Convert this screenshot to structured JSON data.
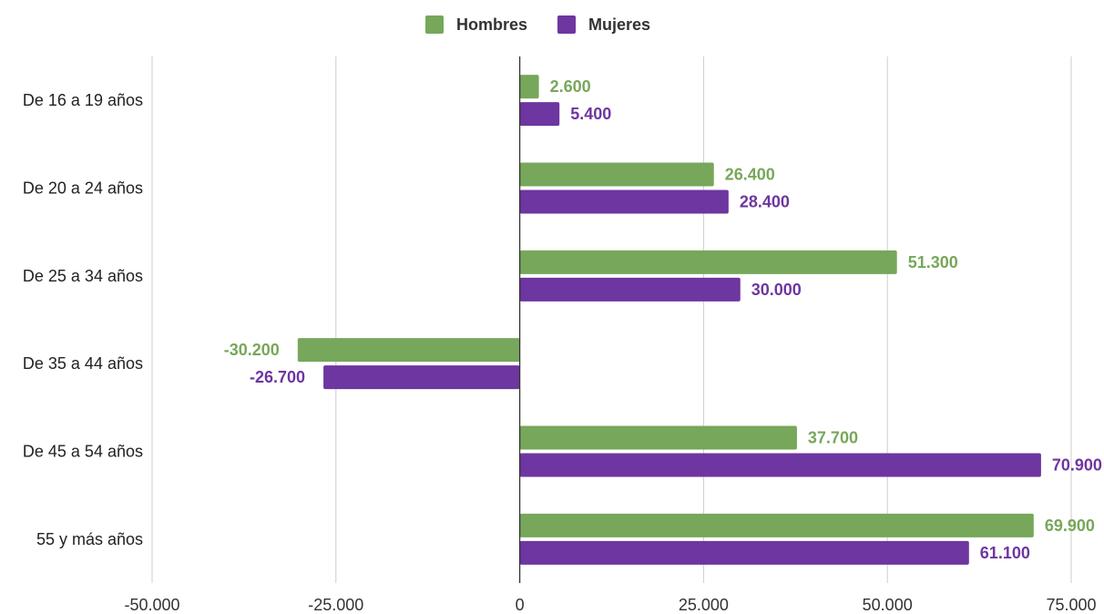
{
  "chart_data": {
    "type": "bar",
    "orientation": "horizontal",
    "title": "",
    "xlabel": "",
    "ylabel": "",
    "categories": [
      "De 16 a 19 años",
      "De 20 a 24 años",
      "De 25 a 34 años",
      "De 35 a 44 años",
      "De 45 a 54 años",
      "55 y más años"
    ],
    "series": [
      {
        "name": "Hombres",
        "color": "#77a75a",
        "values": [
          2600,
          26400,
          51300,
          -30200,
          37700,
          69900
        ],
        "labels": [
          "2.600",
          "26.400",
          "51.300",
          "-30.200",
          "37.700",
          "69.900"
        ]
      },
      {
        "name": "Mujeres",
        "color": "#6e36a0",
        "values": [
          5400,
          28400,
          30000,
          -26700,
          70900,
          61100
        ],
        "labels": [
          "5.400",
          "28.400",
          "30.000",
          "-26.700",
          "70.900",
          "61.100"
        ]
      }
    ],
    "xlim": [
      -50000,
      75000
    ],
    "xticks": [
      {
        "value": -50000,
        "label": "-50.000"
      },
      {
        "value": -25000,
        "label": "-25.000"
      },
      {
        "value": 0,
        "label": "0"
      },
      {
        "value": 25000,
        "label": "25.000"
      },
      {
        "value": 50000,
        "label": "50.000"
      },
      {
        "value": 75000,
        "label": "75.000"
      }
    ],
    "grid": true,
    "legend": "top-center"
  }
}
